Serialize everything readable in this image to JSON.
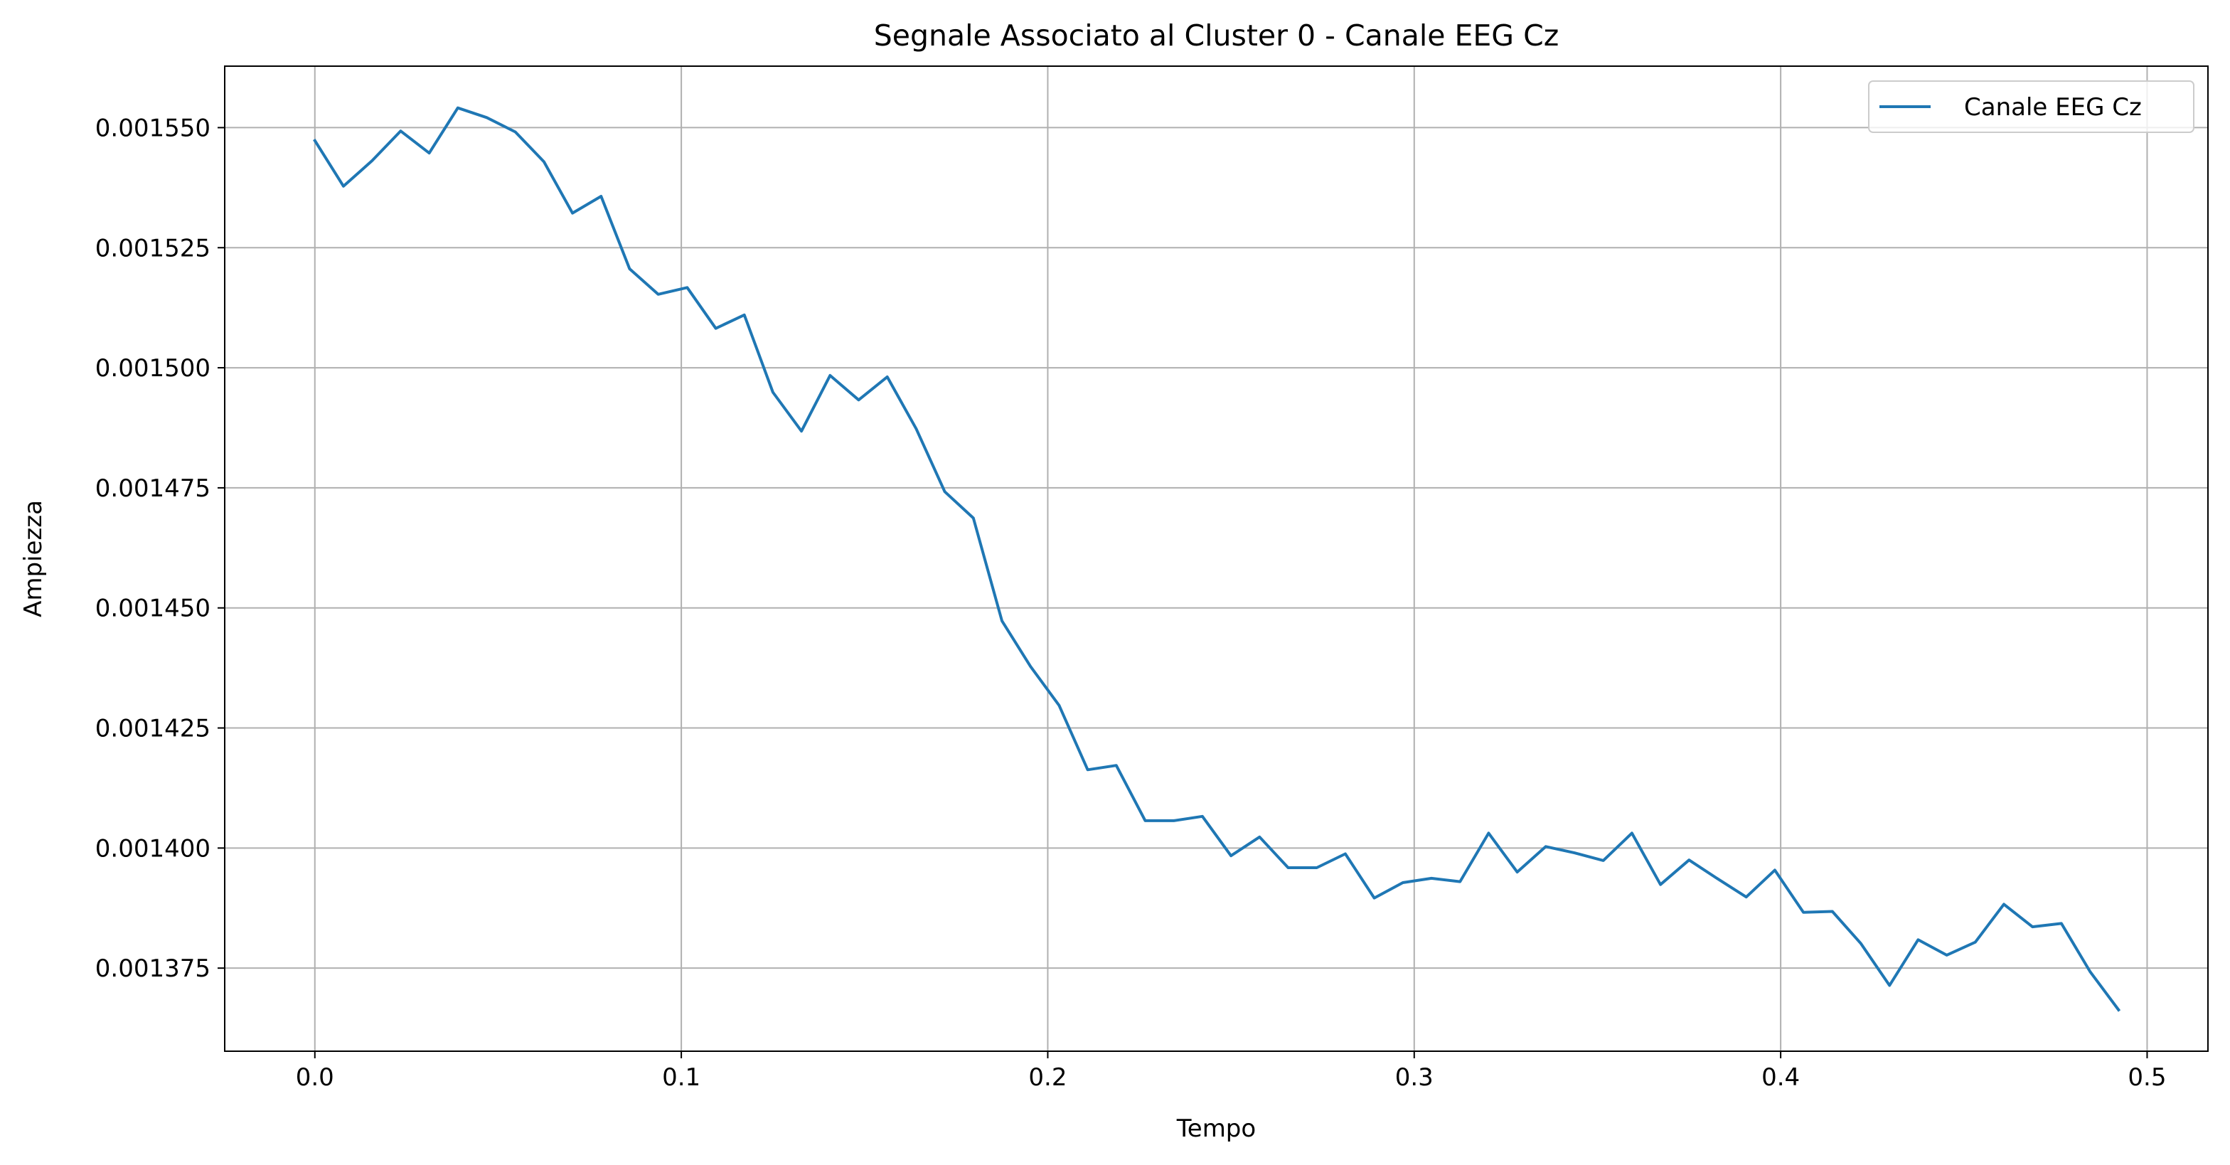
{
  "chart_data": {
    "type": "line",
    "title": "Segnale Associato al Cluster 0 - Canale EEG Cz",
    "xlabel": "Tempo",
    "ylabel": "Ampiezza",
    "xlim": [
      -0.0246,
      0.5166
    ],
    "ylim": [
      0.0013577,
      0.0015628
    ],
    "xticks": [
      0.0,
      0.1,
      0.2,
      0.3,
      0.4,
      0.5
    ],
    "xtick_labels": [
      "0.0",
      "0.1",
      "0.2",
      "0.3",
      "0.4",
      "0.5"
    ],
    "yticks": [
      0.001375,
      0.0014,
      0.001425,
      0.00145,
      0.001475,
      0.0015,
      0.001525,
      0.00155
    ],
    "ytick_labels": [
      "0.001375",
      "0.001400",
      "0.001425",
      "0.001450",
      "0.001475",
      "0.001500",
      "0.001525",
      "0.001550"
    ],
    "grid": true,
    "legend_position": "top-right",
    "series": [
      {
        "name": "Canale EEG Cz",
        "color": "#1f77b4",
        "x": [
          0.0,
          0.0078,
          0.0156,
          0.0234,
          0.0312,
          0.039,
          0.0469,
          0.0547,
          0.0625,
          0.0703,
          0.0781,
          0.0859,
          0.0937,
          0.1016,
          0.1094,
          0.1172,
          0.125,
          0.1328,
          0.1406,
          0.1484,
          0.1562,
          0.1641,
          0.1719,
          0.1797,
          0.1875,
          0.1953,
          0.2031,
          0.2109,
          0.2187,
          0.2266,
          0.2344,
          0.2422,
          0.25,
          0.2578,
          0.2656,
          0.2734,
          0.2812,
          0.2891,
          0.2969,
          0.3047,
          0.3125,
          0.3203,
          0.3281,
          0.3359,
          0.3437,
          0.3516,
          0.3594,
          0.3672,
          0.375,
          0.3828,
          0.3906,
          0.3984,
          0.4062,
          0.4141,
          0.4219,
          0.4297,
          0.4375,
          0.4453,
          0.4531,
          0.4609,
          0.4687,
          0.4766,
          0.4844,
          0.4922
        ],
        "y": [
          0.0015473,
          0.0015378,
          0.0015431,
          0.0015493,
          0.0015447,
          0.0015541,
          0.0015521,
          0.0015491,
          0.0015429,
          0.0015322,
          0.0015357,
          0.0015206,
          0.0015153,
          0.0015167,
          0.0015082,
          0.001511,
          0.0014949,
          0.0014868,
          0.0014984,
          0.0014933,
          0.0014981,
          0.0014873,
          0.0014742,
          0.0014687,
          0.0014473,
          0.0014378,
          0.0014297,
          0.0014163,
          0.0014172,
          0.0014057,
          0.0014057,
          0.0014066,
          0.0013984,
          0.0014023,
          0.0013959,
          0.0013959,
          0.0013988,
          0.0013896,
          0.0013928,
          0.0013937,
          0.001393,
          0.0014031,
          0.001395,
          0.0014003,
          0.001399,
          0.0013974,
          0.0014031,
          0.0013924,
          0.0013975,
          0.0013936,
          0.0013898,
          0.0013954,
          0.0013866,
          0.0013868,
          0.0013801,
          0.0013714,
          0.0013809,
          0.0013777,
          0.0013804,
          0.0013883,
          0.0013836,
          0.0013843,
          0.0013743,
          0.0013663
        ]
      }
    ]
  }
}
